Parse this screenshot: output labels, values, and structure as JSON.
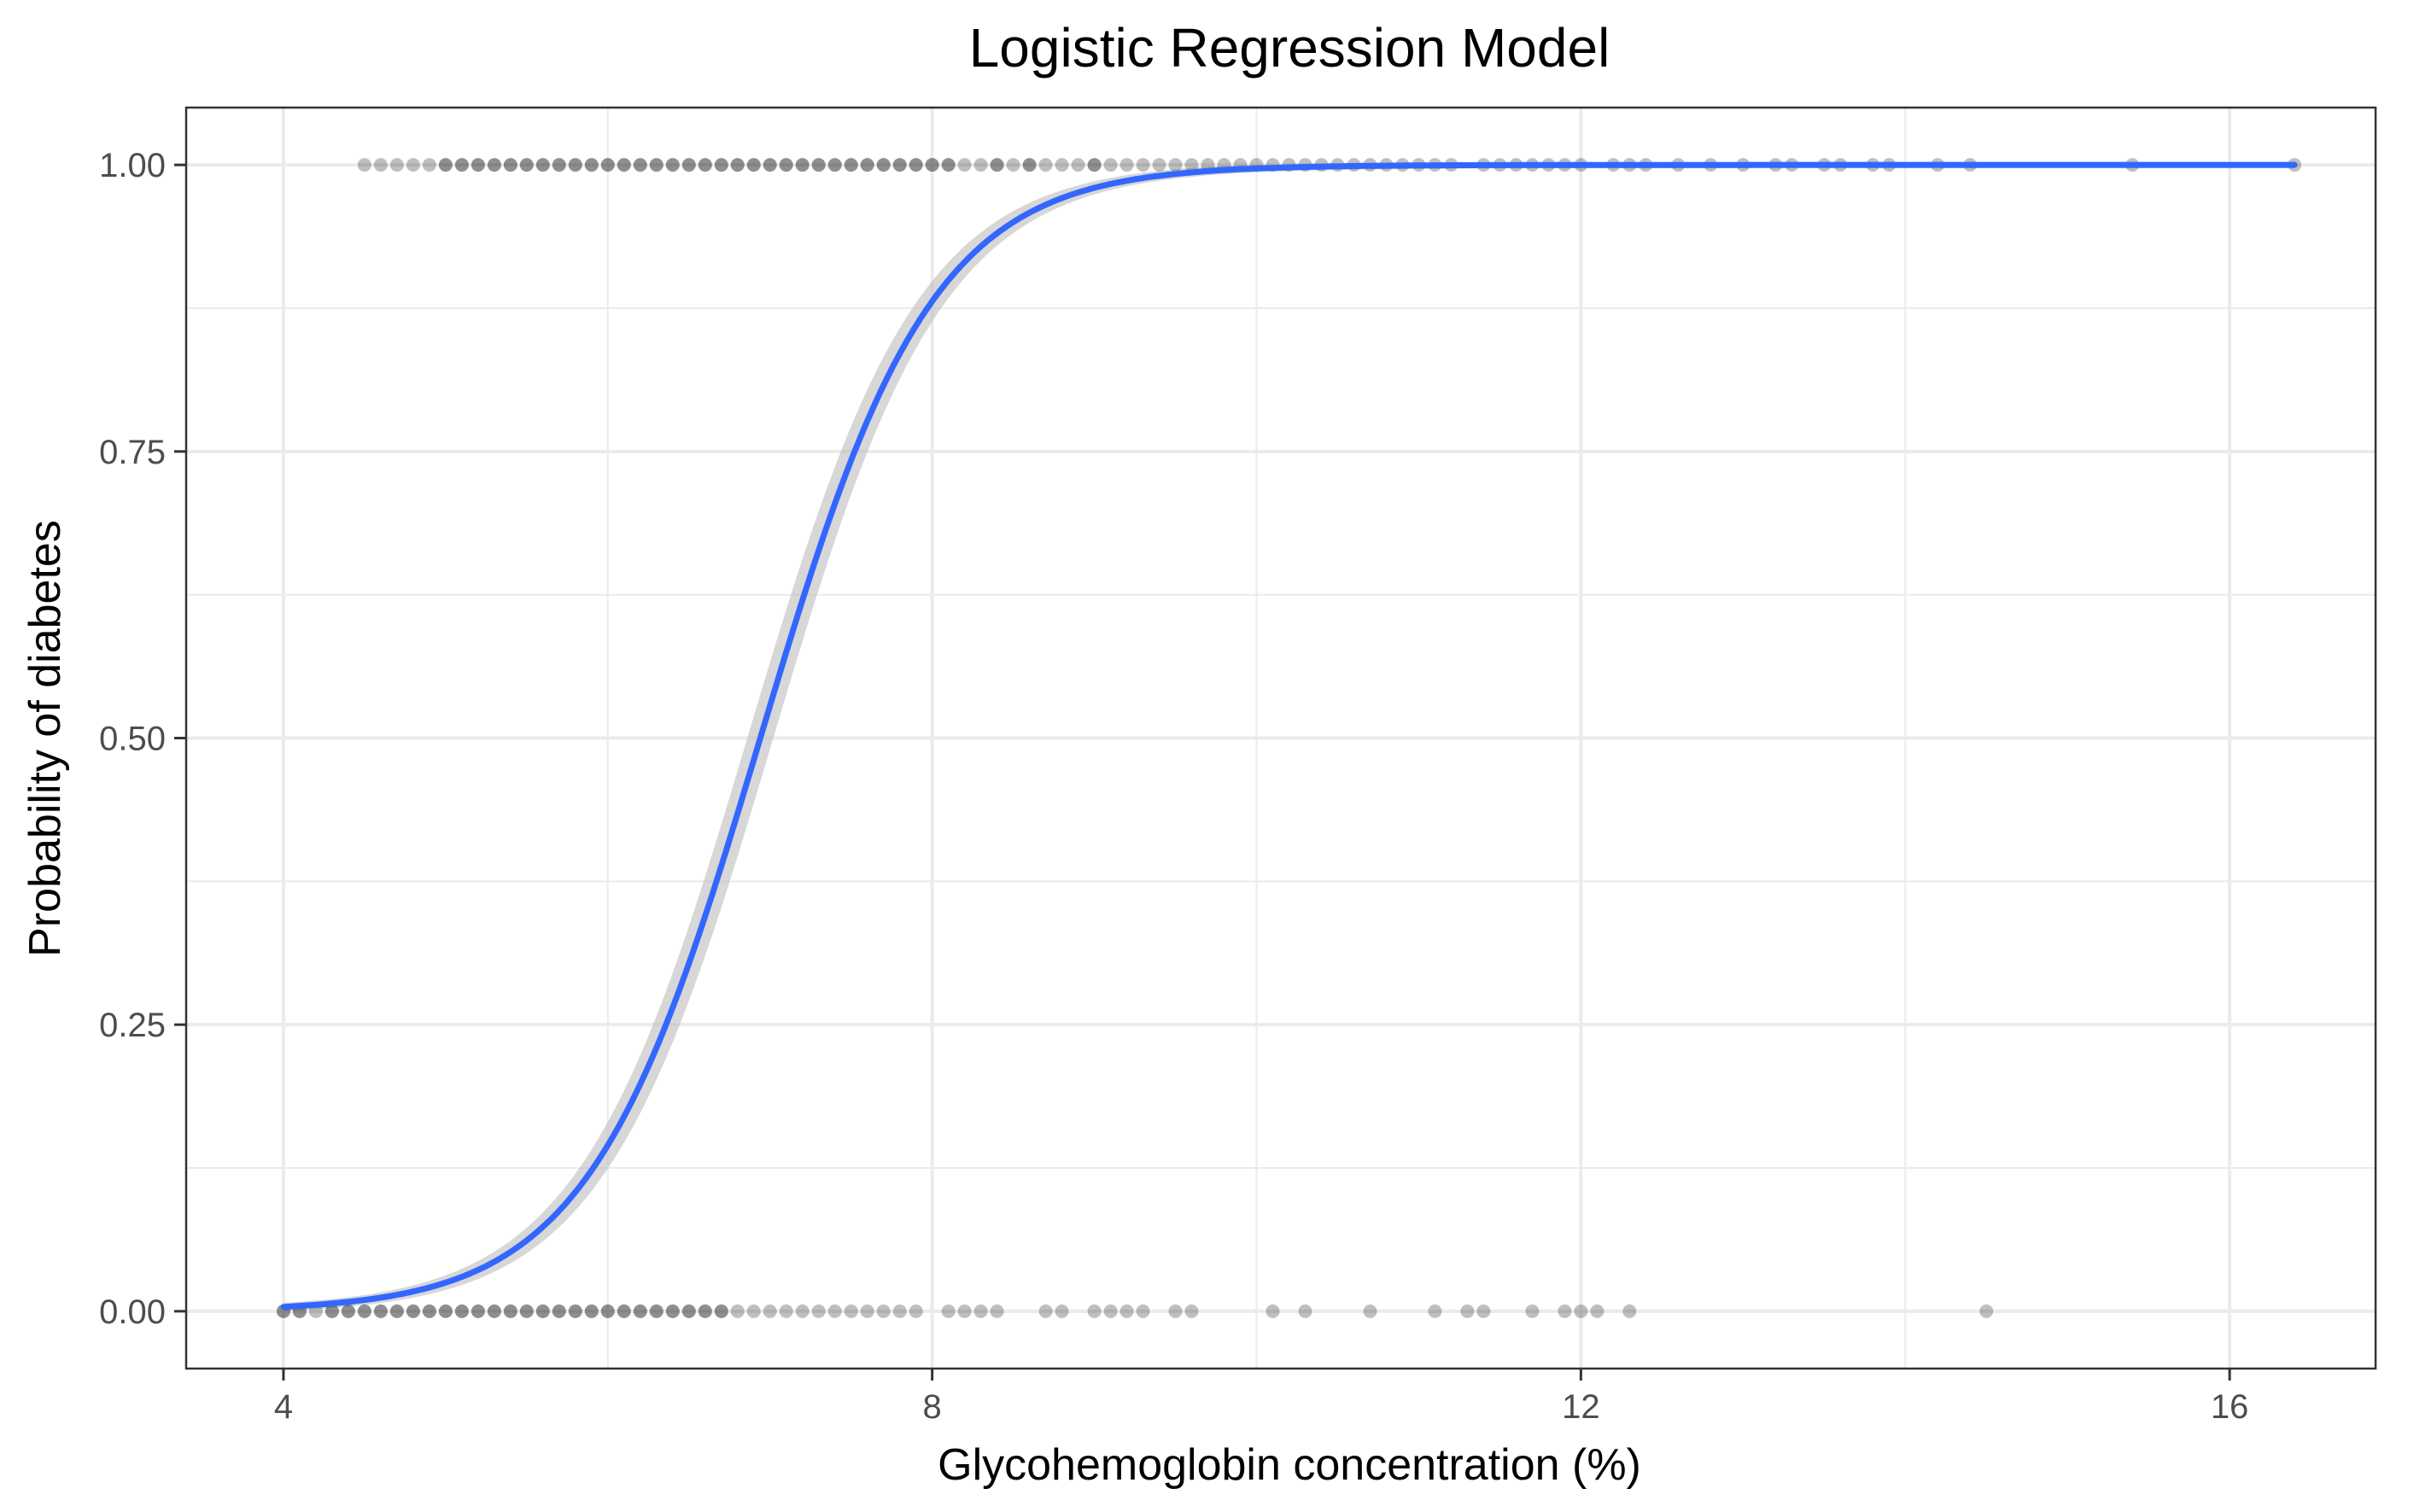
{
  "chart_data": {
    "type": "scatter",
    "title": "Logistic Regression Model",
    "xlabel": "Glycohemoglobin concentration (%)",
    "ylabel": "Probability of diabetes",
    "xlim": [
      3.4,
      16.9
    ],
    "ylim": [
      -0.05,
      1.05
    ],
    "x_ticks": [
      4,
      8,
      12,
      16
    ],
    "x_tick_labels": [
      "4",
      "8",
      "12",
      "16"
    ],
    "y_ticks": [
      0,
      0.25,
      0.5,
      0.75,
      1.0
    ],
    "y_tick_labels": [
      "0.00",
      "0.25",
      "0.50",
      "0.75",
      "1.00"
    ],
    "grid": true,
    "colors": {
      "points": "#000000",
      "fit_line": "#3366ff",
      "confidence_band": "#bdbdbd",
      "grid": "#ebebeb",
      "panel_border": "#333333"
    },
    "point_opacity": 0.25,
    "series": [
      {
        "kind": "points",
        "y": 1,
        "x": [
          4.5,
          4.6,
          4.7,
          4.8,
          4.9,
          5.0,
          5.0,
          5.1,
          5.1,
          5.2,
          5.2,
          5.3,
          5.3,
          5.4,
          5.4,
          5.5,
          5.5,
          5.6,
          5.6,
          5.7,
          5.7,
          5.8,
          5.8,
          5.9,
          5.9,
          6.0,
          6.0,
          6.1,
          6.1,
          6.2,
          6.2,
          6.3,
          6.3,
          6.4,
          6.4,
          6.5,
          6.5,
          6.6,
          6.6,
          6.7,
          6.7,
          6.8,
          6.8,
          6.9,
          6.9,
          7.0,
          7.0,
          7.1,
          7.1,
          7.2,
          7.2,
          7.3,
          7.3,
          7.4,
          7.4,
          7.5,
          7.5,
          7.6,
          7.6,
          7.7,
          7.7,
          7.8,
          7.8,
          7.9,
          7.9,
          8.0,
          8.0,
          8.1,
          8.1,
          8.2,
          8.3,
          8.4,
          8.4,
          8.5,
          8.6,
          8.6,
          8.7,
          8.8,
          8.9,
          9.0,
          9.0,
          9.1,
          9.2,
          9.3,
          9.4,
          9.5,
          9.6,
          9.7,
          9.8,
          9.9,
          10.0,
          10.1,
          10.2,
          10.3,
          10.4,
          10.5,
          10.6,
          10.7,
          10.8,
          10.9,
          11.0,
          11.1,
          11.2,
          11.4,
          11.5,
          11.6,
          11.7,
          11.8,
          11.9,
          12.0,
          12.2,
          12.3,
          12.4,
          12.6,
          12.8,
          13.0,
          13.2,
          13.3,
          13.5,
          13.6,
          13.8,
          13.9,
          14.2,
          14.4,
          15.4,
          16.4
        ]
      },
      {
        "kind": "points",
        "y": 0,
        "x": [
          4.0,
          4.0,
          4.1,
          4.1,
          4.2,
          4.3,
          4.3,
          4.4,
          4.4,
          4.5,
          4.5,
          4.6,
          4.6,
          4.7,
          4.7,
          4.8,
          4.8,
          4.9,
          4.9,
          5.0,
          5.0,
          5.1,
          5.1,
          5.2,
          5.2,
          5.3,
          5.3,
          5.4,
          5.4,
          5.5,
          5.5,
          5.6,
          5.6,
          5.7,
          5.7,
          5.8,
          5.8,
          5.9,
          5.9,
          6.0,
          6.0,
          6.1,
          6.1,
          6.2,
          6.2,
          6.3,
          6.3,
          6.4,
          6.4,
          6.5,
          6.5,
          6.6,
          6.6,
          6.7,
          6.7,
          6.8,
          6.9,
          7.0,
          7.1,
          7.2,
          7.3,
          7.4,
          7.5,
          7.6,
          7.7,
          7.8,
          7.9,
          8.1,
          8.2,
          8.3,
          8.4,
          8.7,
          8.8,
          9.0,
          9.1,
          9.2,
          9.3,
          9.5,
          9.6,
          10.1,
          10.3,
          10.7,
          11.1,
          11.3,
          11.4,
          11.7,
          11.9,
          12.0,
          12.1,
          12.3,
          14.5
        ]
      }
    ],
    "fit": {
      "kind": "logistic",
      "intercept": -13.11,
      "slope": 1.889,
      "ci_half_width_max": 0.035,
      "x_range": [
        4.0,
        16.4
      ]
    }
  }
}
